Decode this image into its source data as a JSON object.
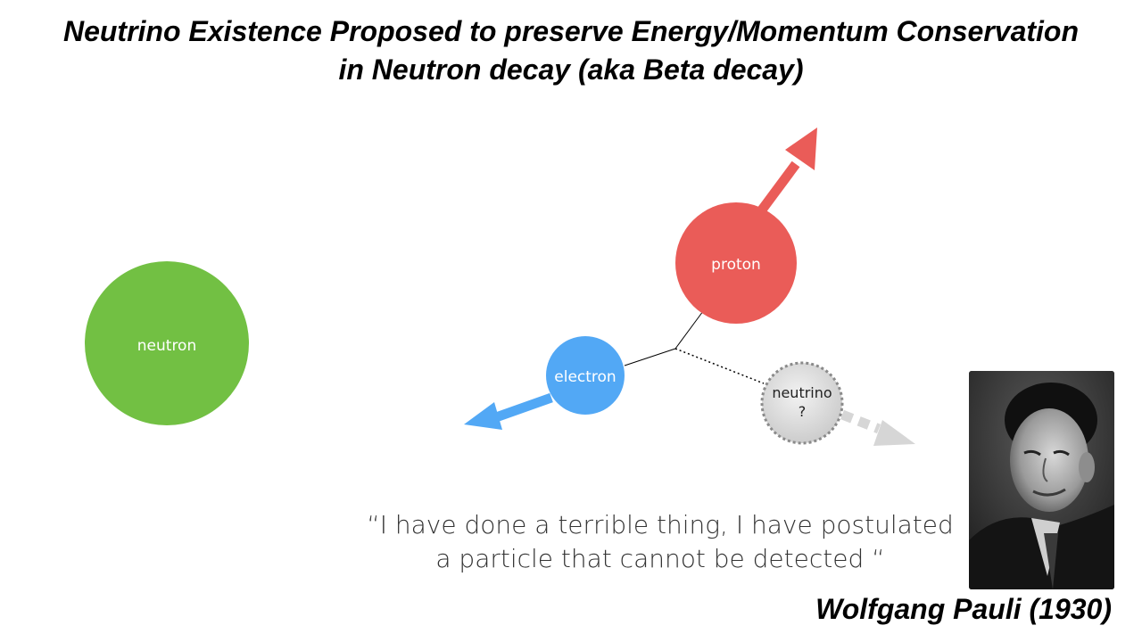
{
  "title": {
    "line1": "Neutrino Existence Proposed to preserve Energy/Momentum Conservation",
    "line2": "in Neutron decay  (aka Beta decay)"
  },
  "particles": {
    "neutron": {
      "label": "neutron",
      "color": "#72c043"
    },
    "proton": {
      "label": "proton",
      "color": "#ea5c58"
    },
    "electron": {
      "label": "electron",
      "color": "#52a8f5"
    },
    "neutrino": {
      "label": "neutrino",
      "label2": "?",
      "color": "#d6d6d6"
    }
  },
  "quote": {
    "line1": "“I have done a terrible thing, I have postulated",
    "line2": "a particle that cannot be detected “"
  },
  "author": "Wolfgang Pauli (1930)",
  "photo": {
    "icon": "portrait-photo"
  }
}
